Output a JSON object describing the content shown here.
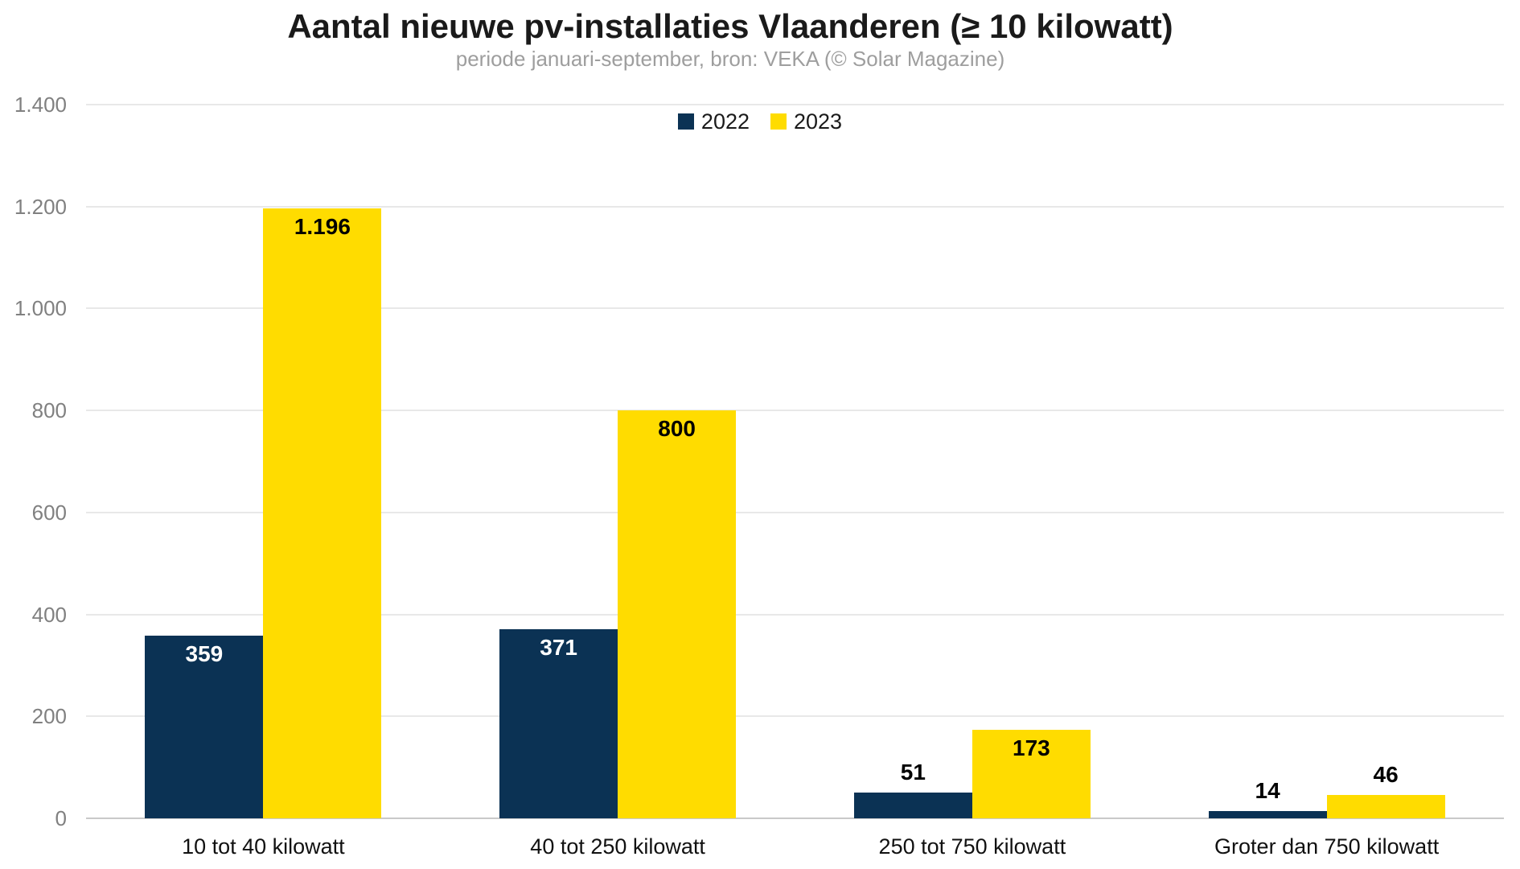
{
  "chart_data": {
    "type": "bar",
    "title": "Aantal nieuwe pv-installaties Vlaanderen (≥ 10 kilowatt)",
    "subtitle": "periode januari-september, bron: VEKA (© Solar Magazine)",
    "categories": [
      "10 tot 40 kilowatt",
      "40 tot 250 kilowatt",
      "250 tot 750 kilowatt",
      "Groter dan 750 kilowatt"
    ],
    "series": [
      {
        "name": "2022",
        "color": "#0b3254",
        "values": [
          359,
          371,
          51,
          14
        ],
        "labels": [
          "359",
          "371",
          "51",
          "14"
        ],
        "inside_label_color": "#ffffff"
      },
      {
        "name": "2023",
        "color": "#ffdc00",
        "values": [
          1196,
          800,
          173,
          46
        ],
        "labels": [
          "1.196",
          "800",
          "173",
          "46"
        ],
        "inside_label_color": "#000000"
      }
    ],
    "xlabel": "",
    "ylabel": "",
    "ylim": [
      0,
      1400
    ],
    "yticks": [
      0,
      200,
      400,
      600,
      800,
      1000,
      1200,
      1400
    ],
    "ytick_labels": [
      "0",
      "200",
      "400",
      "600",
      "800",
      "1.000",
      "1.200",
      "1.400"
    ],
    "grid": true,
    "legend_position": "top",
    "outside_label_color": "#000000",
    "gridline_color": "#e8e8e8",
    "baseline_color": "#c9c9c9"
  }
}
